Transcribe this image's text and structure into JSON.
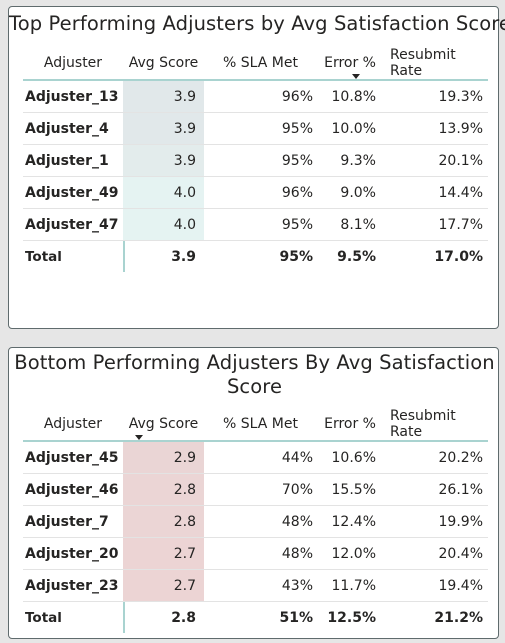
{
  "top_card": {
    "title": "Top Performing Adjusters by Avg Satisfaction Score",
    "headers": [
      "Adjuster",
      "Avg Score",
      "% SLA Met",
      "Error %",
      "Resubmit Rate"
    ],
    "sorted_column": "Error %",
    "rows": [
      {
        "adjuster": "Adjuster_13",
        "avg_score": "3.9",
        "sla_met": "96%",
        "error": "10.8%",
        "resubmit": "19.3%",
        "score_bg": "#e1e8ea"
      },
      {
        "adjuster": "Adjuster_4",
        "avg_score": "3.9",
        "sla_met": "95%",
        "error": "10.0%",
        "resubmit": "13.9%",
        "score_bg": "#e1e8ea"
      },
      {
        "adjuster": "Adjuster_1",
        "avg_score": "3.9",
        "sla_met": "95%",
        "error": "9.3%",
        "resubmit": "20.1%",
        "score_bg": "#e3ecec"
      },
      {
        "adjuster": "Adjuster_49",
        "avg_score": "4.0",
        "sla_met": "96%",
        "error": "9.0%",
        "resubmit": "14.4%",
        "score_bg": "#e5f3f2"
      },
      {
        "adjuster": "Adjuster_47",
        "avg_score": "4.0",
        "sla_met": "95%",
        "error": "8.1%",
        "resubmit": "17.7%",
        "score_bg": "#e5f3f2"
      }
    ],
    "total": {
      "label": "Total",
      "avg_score": "3.9",
      "sla_met": "95%",
      "error": "9.5%",
      "resubmit": "17.0%"
    }
  },
  "bottom_card": {
    "title": "Bottom Performing Adjusters By Avg Satisfaction Score",
    "headers": [
      "Adjuster",
      "Avg Score",
      "% SLA Met",
      "Error %",
      "Resubmit Rate"
    ],
    "sorted_column": "Avg Score",
    "rows": [
      {
        "adjuster": "Adjuster_45",
        "avg_score": "2.9",
        "sla_met": "44%",
        "error": "10.6%",
        "resubmit": "20.2%",
        "score_bg": "#ead5d5"
      },
      {
        "adjuster": "Adjuster_46",
        "avg_score": "2.8",
        "sla_met": "70%",
        "error": "15.5%",
        "resubmit": "26.1%",
        "score_bg": "#ebd5d5"
      },
      {
        "adjuster": "Adjuster_7",
        "avg_score": "2.8",
        "sla_met": "48%",
        "error": "12.4%",
        "resubmit": "19.9%",
        "score_bg": "#ebd5d5"
      },
      {
        "adjuster": "Adjuster_20",
        "avg_score": "2.7",
        "sla_met": "48%",
        "error": "12.0%",
        "resubmit": "20.4%",
        "score_bg": "#ecd4d4"
      },
      {
        "adjuster": "Adjuster_23",
        "avg_score": "2.7",
        "sla_met": "43%",
        "error": "11.7%",
        "resubmit": "19.4%",
        "score_bg": "#ecd4d4"
      }
    ],
    "total": {
      "label": "Total",
      "avg_score": "2.8",
      "sla_met": "51%",
      "error": "12.5%",
      "resubmit": "21.2%"
    }
  }
}
